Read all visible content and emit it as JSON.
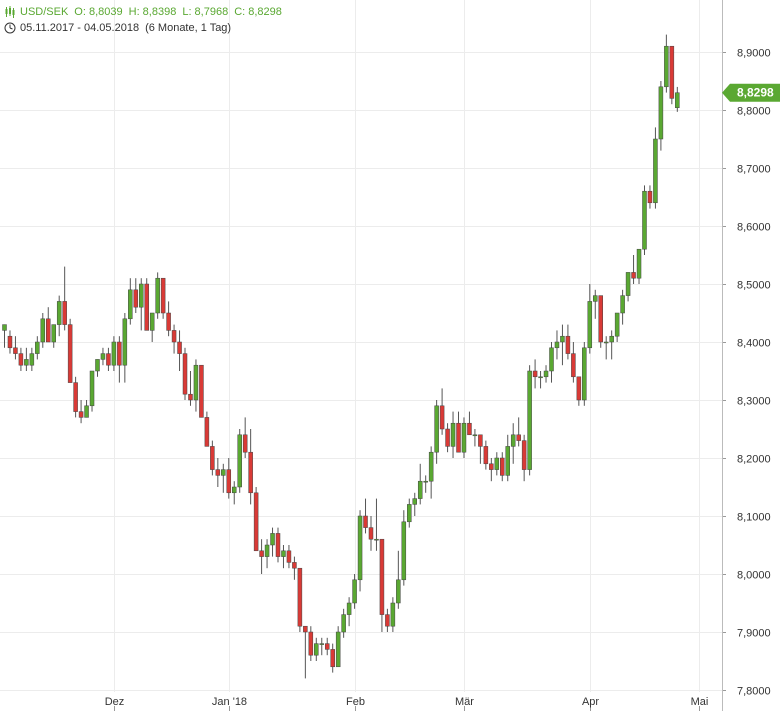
{
  "header": {
    "symbol": "USD/SEK",
    "open": "O: 8,8039",
    "high": "H: 8,8398",
    "low": "L: 8,7968",
    "close": "C: 8,8298",
    "range": "05.11.2017 - 04.05.2018",
    "period": "(6 Monate, 1 Tag)",
    "chart_icon": "candlestick-icon",
    "time_icon": "clock-icon",
    "accent_color": "#5aa832"
  },
  "last_price": {
    "label": "8,8298",
    "value": 8.8298,
    "color": "#5aa832"
  },
  "chart_data": {
    "type": "candlestick",
    "title": "USD/SEK",
    "ylim": [
      7.8,
      8.93
    ],
    "y_ticks": [
      {
        "value": 7.8,
        "label": "7,8000"
      },
      {
        "value": 7.9,
        "label": "7,9000"
      },
      {
        "value": 8.0,
        "label": "8,0000"
      },
      {
        "value": 8.1,
        "label": "8,1000"
      },
      {
        "value": 8.2,
        "label": "8,2000"
      },
      {
        "value": 8.3,
        "label": "8,3000"
      },
      {
        "value": 8.4,
        "label": "8,4000"
      },
      {
        "value": 8.5,
        "label": "8,5000"
      },
      {
        "value": 8.6,
        "label": "8,6000"
      },
      {
        "value": 8.7,
        "label": "8,7000"
      },
      {
        "value": 8.8,
        "label": "8,8000"
      },
      {
        "value": 8.9,
        "label": "8,9000"
      }
    ],
    "x_ticks": [
      {
        "index": 20,
        "label": "Dez"
      },
      {
        "index": 41,
        "label": "Jan '18"
      },
      {
        "index": 64,
        "label": "Feb"
      },
      {
        "index": 84,
        "label": "Mär"
      },
      {
        "index": 107,
        "label": "Apr"
      },
      {
        "index": 127,
        "label": "Mai"
      }
    ],
    "grid": true,
    "up_color": "#5aa832",
    "down_color": "#d93a36",
    "ohlc": [
      [
        8.42,
        8.43,
        8.39,
        8.43
      ],
      [
        8.41,
        8.42,
        8.38,
        8.39
      ],
      [
        8.39,
        8.41,
        8.37,
        8.38
      ],
      [
        8.38,
        8.39,
        8.35,
        8.36
      ],
      [
        8.36,
        8.39,
        8.35,
        8.37
      ],
      [
        8.36,
        8.39,
        8.35,
        8.38
      ],
      [
        8.38,
        8.41,
        8.37,
        8.4
      ],
      [
        8.4,
        8.45,
        8.39,
        8.44
      ],
      [
        8.44,
        8.46,
        8.4,
        8.4
      ],
      [
        8.4,
        8.43,
        8.39,
        8.43
      ],
      [
        8.43,
        8.48,
        8.41,
        8.47
      ],
      [
        8.47,
        8.53,
        8.42,
        8.43
      ],
      [
        8.43,
        8.44,
        8.33,
        8.33
      ],
      [
        8.33,
        8.34,
        8.27,
        8.28
      ],
      [
        8.28,
        8.3,
        8.26,
        8.27
      ],
      [
        8.27,
        8.3,
        8.27,
        8.29
      ],
      [
        8.29,
        8.35,
        8.28,
        8.35
      ],
      [
        8.35,
        8.37,
        8.34,
        8.37
      ],
      [
        8.37,
        8.39,
        8.36,
        8.38
      ],
      [
        8.38,
        8.39,
        8.35,
        8.36
      ],
      [
        8.36,
        8.41,
        8.35,
        8.4
      ],
      [
        8.4,
        8.41,
        8.33,
        8.36
      ],
      [
        8.36,
        8.45,
        8.33,
        8.44
      ],
      [
        8.44,
        8.51,
        8.43,
        8.49
      ],
      [
        8.49,
        8.51,
        8.45,
        8.46
      ],
      [
        8.46,
        8.51,
        8.42,
        8.5
      ],
      [
        8.5,
        8.51,
        8.43,
        8.42
      ],
      [
        8.42,
        8.45,
        8.4,
        8.45
      ],
      [
        8.45,
        8.52,
        8.44,
        8.51
      ],
      [
        8.51,
        8.51,
        8.44,
        8.45
      ],
      [
        8.45,
        8.47,
        8.41,
        8.42
      ],
      [
        8.42,
        8.43,
        8.38,
        8.4
      ],
      [
        8.4,
        8.42,
        8.35,
        8.38
      ],
      [
        8.38,
        8.39,
        8.3,
        8.31
      ],
      [
        8.31,
        8.35,
        8.29,
        8.3
      ],
      [
        8.3,
        8.37,
        8.28,
        8.36
      ],
      [
        8.36,
        8.36,
        8.27,
        8.27
      ],
      [
        8.27,
        8.28,
        8.22,
        8.22
      ],
      [
        8.22,
        8.23,
        8.17,
        8.18
      ],
      [
        8.18,
        8.2,
        8.15,
        8.17
      ],
      [
        8.17,
        8.19,
        8.14,
        8.18
      ],
      [
        8.18,
        8.2,
        8.13,
        8.14
      ],
      [
        8.14,
        8.16,
        8.12,
        8.15
      ],
      [
        8.15,
        8.25,
        8.14,
        8.24
      ],
      [
        8.24,
        8.27,
        8.2,
        8.21
      ],
      [
        8.21,
        8.25,
        8.12,
        8.14
      ],
      [
        8.14,
        8.15,
        8.04,
        8.04
      ],
      [
        8.04,
        8.06,
        8.0,
        8.03
      ],
      [
        8.03,
        8.06,
        8.01,
        8.05
      ],
      [
        8.05,
        8.08,
        8.03,
        8.07
      ],
      [
        8.07,
        8.08,
        8.02,
        8.03
      ],
      [
        8.03,
        8.05,
        8.01,
        8.04
      ],
      [
        8.04,
        8.05,
        8.01,
        8.02
      ],
      [
        8.02,
        8.03,
        7.99,
        8.01
      ],
      [
        8.01,
        8.01,
        7.9,
        7.91
      ],
      [
        7.91,
        7.91,
        7.82,
        7.9
      ],
      [
        7.9,
        7.91,
        7.85,
        7.86
      ],
      [
        7.86,
        7.89,
        7.85,
        7.88
      ],
      [
        7.88,
        7.89,
        7.86,
        7.88
      ],
      [
        7.88,
        7.89,
        7.86,
        7.87
      ],
      [
        7.87,
        7.88,
        7.83,
        7.84
      ],
      [
        7.84,
        7.91,
        7.84,
        7.9
      ],
      [
        7.9,
        7.94,
        7.89,
        7.93
      ],
      [
        7.93,
        7.96,
        7.91,
        7.95
      ],
      [
        7.95,
        8.0,
        7.94,
        7.99
      ],
      [
        7.99,
        8.11,
        7.97,
        8.1
      ],
      [
        8.1,
        8.13,
        8.07,
        8.08
      ],
      [
        8.08,
        8.1,
        8.04,
        8.06
      ],
      [
        8.06,
        8.13,
        8.04,
        8.06
      ],
      [
        8.06,
        8.06,
        7.9,
        7.93
      ],
      [
        7.93,
        7.94,
        7.9,
        7.91
      ],
      [
        7.91,
        7.96,
        7.9,
        7.95
      ],
      [
        7.95,
        8.04,
        7.94,
        7.99
      ],
      [
        7.99,
        8.11,
        7.98,
        8.09
      ],
      [
        8.09,
        8.13,
        8.08,
        8.12
      ],
      [
        8.12,
        8.14,
        8.1,
        8.13
      ],
      [
        8.13,
        8.19,
        8.12,
        8.16
      ],
      [
        8.16,
        8.17,
        8.14,
        8.16
      ],
      [
        8.16,
        8.22,
        8.13,
        8.21
      ],
      [
        8.21,
        8.3,
        8.19,
        8.29
      ],
      [
        8.29,
        8.32,
        8.24,
        8.25
      ],
      [
        8.25,
        8.26,
        8.21,
        8.22
      ],
      [
        8.22,
        8.28,
        8.2,
        8.26
      ],
      [
        8.26,
        8.28,
        8.21,
        8.21
      ],
      [
        8.21,
        8.27,
        8.2,
        8.26
      ],
      [
        8.26,
        8.28,
        8.24,
        8.24
      ],
      [
        8.24,
        8.25,
        8.22,
        8.24
      ],
      [
        8.24,
        8.24,
        8.19,
        8.22
      ],
      [
        8.22,
        8.23,
        8.18,
        8.19
      ],
      [
        8.19,
        8.2,
        8.16,
        8.18
      ],
      [
        8.18,
        8.21,
        8.17,
        8.2
      ],
      [
        8.2,
        8.21,
        8.16,
        8.17
      ],
      [
        8.17,
        8.24,
        8.16,
        8.22
      ],
      [
        8.22,
        8.26,
        8.19,
        8.24
      ],
      [
        8.24,
        8.27,
        8.22,
        8.23
      ],
      [
        8.23,
        8.24,
        8.16,
        8.18
      ],
      [
        8.18,
        8.36,
        8.17,
        8.35
      ],
      [
        8.35,
        8.37,
        8.32,
        8.34
      ],
      [
        8.34,
        8.35,
        8.32,
        8.34
      ],
      [
        8.34,
        8.36,
        8.33,
        8.35
      ],
      [
        8.35,
        8.4,
        8.33,
        8.39
      ],
      [
        8.39,
        8.42,
        8.37,
        8.4
      ],
      [
        8.4,
        8.43,
        8.36,
        8.41
      ],
      [
        8.41,
        8.43,
        8.37,
        8.38
      ],
      [
        8.38,
        8.4,
        8.33,
        8.34
      ],
      [
        8.34,
        8.34,
        8.29,
        8.3
      ],
      [
        8.3,
        8.4,
        8.29,
        8.39
      ],
      [
        8.39,
        8.5,
        8.38,
        8.47
      ],
      [
        8.47,
        8.49,
        8.44,
        8.48
      ],
      [
        8.48,
        8.48,
        8.39,
        8.4
      ],
      [
        8.4,
        8.41,
        8.37,
        8.4
      ],
      [
        8.4,
        8.42,
        8.37,
        8.41
      ],
      [
        8.41,
        8.45,
        8.4,
        8.45
      ],
      [
        8.45,
        8.49,
        8.43,
        8.48
      ],
      [
        8.48,
        8.52,
        8.47,
        8.52
      ],
      [
        8.52,
        8.55,
        8.5,
        8.51
      ],
      [
        8.51,
        8.56,
        8.5,
        8.56
      ],
      [
        8.56,
        8.67,
        8.55,
        8.66
      ],
      [
        8.66,
        8.67,
        8.63,
        8.64
      ],
      [
        8.64,
        8.77,
        8.63,
        8.75
      ],
      [
        8.75,
        8.85,
        8.73,
        8.84
      ],
      [
        8.84,
        8.93,
        8.83,
        8.91
      ],
      [
        8.91,
        8.91,
        8.81,
        8.82
      ],
      [
        8.8039,
        8.8398,
        8.7968,
        8.8298
      ]
    ]
  }
}
